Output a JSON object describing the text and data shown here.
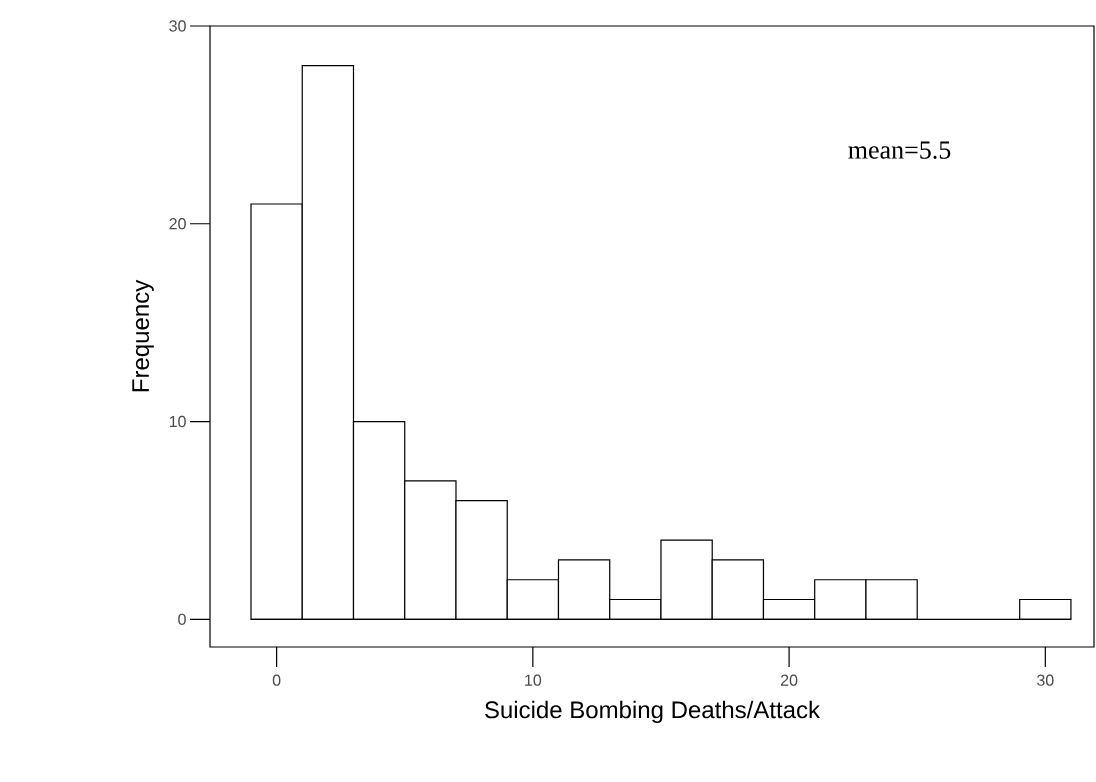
{
  "chart_data": {
    "type": "histogram",
    "xlabel": "Suicide Bombing Deaths/Attack",
    "ylabel": "Frequency",
    "bins": [
      -1,
      1,
      3,
      5,
      7,
      9,
      11,
      13,
      15,
      17,
      19,
      21,
      23,
      25,
      27,
      29,
      31
    ],
    "values": [
      21,
      28,
      10,
      7,
      6,
      2,
      3,
      1,
      4,
      3,
      1,
      2,
      2,
      0,
      0,
      1
    ],
    "color": "#ffffff",
    "xlim": [
      -2.6,
      31.9
    ],
    "ylim": [
      -1.4,
      30
    ],
    "xticks": [
      0,
      10,
      20,
      30
    ],
    "yticks": [
      0,
      10,
      20,
      30
    ],
    "annotations": [
      "mean=5.5"
    ]
  }
}
